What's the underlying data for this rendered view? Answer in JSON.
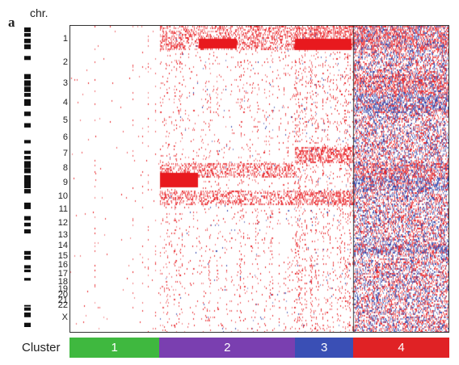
{
  "figure": {
    "panel_letter": "a",
    "chr_header": "chr.",
    "cluster_label": "Cluster"
  },
  "chromosomes": [
    {
      "label": "1",
      "start": 0.0,
      "end": 0.075
    },
    {
      "label": "2",
      "start": 0.075,
      "end": 0.155
    },
    {
      "label": "3",
      "start": 0.155,
      "end": 0.218
    },
    {
      "label": "4",
      "start": 0.218,
      "end": 0.28
    },
    {
      "label": "5",
      "start": 0.28,
      "end": 0.338
    },
    {
      "label": "6",
      "start": 0.338,
      "end": 0.393
    },
    {
      "label": "7",
      "start": 0.393,
      "end": 0.445
    },
    {
      "label": "8",
      "start": 0.445,
      "end": 0.492
    },
    {
      "label": "9",
      "start": 0.492,
      "end": 0.538
    },
    {
      "label": "10",
      "start": 0.538,
      "end": 0.583
    },
    {
      "label": "11",
      "start": 0.583,
      "end": 0.628
    },
    {
      "label": "12",
      "start": 0.628,
      "end": 0.672
    },
    {
      "label": "13",
      "start": 0.672,
      "end": 0.709
    },
    {
      "label": "14",
      "start": 0.709,
      "end": 0.744
    },
    {
      "label": "15",
      "start": 0.744,
      "end": 0.777
    },
    {
      "label": "16",
      "start": 0.777,
      "end": 0.806
    },
    {
      "label": "17",
      "start": 0.806,
      "end": 0.834
    },
    {
      "label": "18",
      "start": 0.834,
      "end": 0.861
    },
    {
      "label": "19",
      "start": 0.861,
      "end": 0.881
    },
    {
      "label": "20",
      "start": 0.881,
      "end": 0.901
    },
    {
      "label": "21",
      "start": 0.901,
      "end": 0.916
    },
    {
      "label": "22",
      "start": 0.916,
      "end": 0.932
    },
    {
      "label": "X",
      "start": 0.932,
      "end": 1.0
    }
  ],
  "clusters": [
    {
      "label": "1",
      "start": 0.0,
      "end": 0.237,
      "color": "#3fb83f"
    },
    {
      "label": "2",
      "start": 0.237,
      "end": 0.594,
      "color": "#7a3fb0"
    },
    {
      "label": "3",
      "start": 0.594,
      "end": 0.747,
      "color": "#3a4fb5"
    },
    {
      "label": "4",
      "start": 0.747,
      "end": 1.0,
      "color": "#e02225"
    }
  ],
  "colors": {
    "gain": "#e8191e",
    "loss": "#2b3ea8",
    "neutral": "#ffffff",
    "ideogram_band": "#111111"
  }
}
